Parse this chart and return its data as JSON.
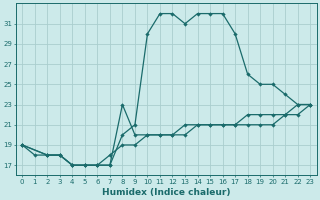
{
  "xlabel": "Humidex (Indice chaleur)",
  "bg_color": "#cceaea",
  "line_color": "#1a6b6b",
  "grid_color": "#aacece",
  "x_ticks": [
    0,
    1,
    2,
    3,
    4,
    5,
    6,
    7,
    8,
    9,
    10,
    11,
    12,
    13,
    14,
    15,
    16,
    17,
    18,
    19,
    20,
    21,
    22,
    23
  ],
  "y_ticks": [
    17,
    19,
    21,
    23,
    25,
    27,
    29,
    31
  ],
  "xlim": [
    -0.5,
    23.5
  ],
  "ylim": [
    16.0,
    33.0
  ],
  "line1": {
    "x": [
      0,
      1,
      2,
      3,
      4,
      5,
      6,
      7,
      8,
      9,
      10,
      11,
      12,
      13,
      14,
      15,
      16,
      17,
      18,
      19,
      20,
      21,
      22,
      23
    ],
    "y": [
      19,
      18,
      18,
      18,
      17,
      17,
      17,
      17,
      20,
      21,
      30,
      32,
      32,
      31,
      32,
      32,
      32,
      30,
      26,
      25,
      25,
      24,
      23,
      23
    ]
  },
  "line2": {
    "x": [
      0,
      2,
      3,
      4,
      5,
      6,
      7,
      8,
      9,
      10,
      11,
      12,
      13,
      14,
      15,
      16,
      17,
      18,
      19,
      20,
      21,
      22,
      23
    ],
    "y": [
      19,
      18,
      18,
      17,
      17,
      17,
      18,
      19,
      19,
      20,
      20,
      20,
      20,
      21,
      21,
      21,
      21,
      22,
      22,
      22,
      22,
      23,
      23
    ]
  },
  "line3": {
    "x": [
      0,
      2,
      3,
      4,
      5,
      6,
      7,
      8,
      9,
      10,
      11,
      12,
      13,
      14,
      15,
      16,
      17,
      18,
      19,
      20,
      21,
      22,
      23
    ],
    "y": [
      19,
      18,
      18,
      17,
      17,
      17,
      17,
      23,
      20,
      20,
      20,
      20,
      21,
      21,
      21,
      21,
      21,
      21,
      21,
      21,
      22,
      22,
      23
    ]
  }
}
